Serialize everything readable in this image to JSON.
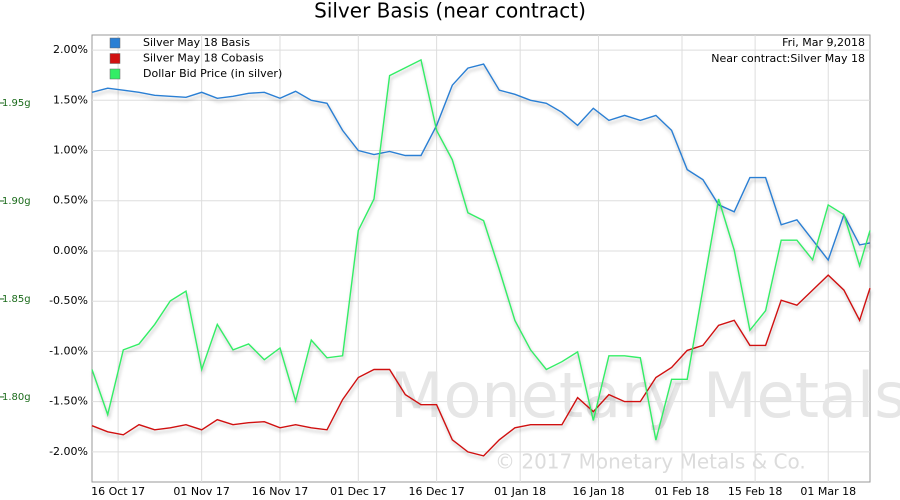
{
  "chart_data": {
    "type": "line",
    "title": "Silver Basis (near contract)",
    "annotations": [
      "Fri, Mar 9,2018",
      "Near contract:Silver May 18"
    ],
    "watermark": [
      "Monetary Metals",
      "© 2017 Monetary Metals & Co."
    ],
    "x": [
      "2017-10-11",
      "2017-10-14",
      "2017-10-17",
      "2017-10-20",
      "2017-10-23",
      "2017-10-26",
      "2017-10-29",
      "2017-11-01",
      "2017-11-04",
      "2017-11-07",
      "2017-11-10",
      "2017-11-13",
      "2017-11-16",
      "2017-11-19",
      "2017-11-22",
      "2017-11-25",
      "2017-11-28",
      "2017-12-01",
      "2017-12-04",
      "2017-12-07",
      "2017-12-10",
      "2017-12-13",
      "2017-12-16",
      "2017-12-19",
      "2017-12-22",
      "2017-12-25",
      "2017-12-28",
      "2017-12-31",
      "2018-01-03",
      "2018-01-06",
      "2018-01-09",
      "2018-01-12",
      "2018-01-15",
      "2018-01-18",
      "2018-01-21",
      "2018-01-24",
      "2018-01-27",
      "2018-01-30",
      "2018-02-02",
      "2018-02-05",
      "2018-02-08",
      "2018-02-11",
      "2018-02-14",
      "2018-02-17",
      "2018-02-20",
      "2018-02-23",
      "2018-02-26",
      "2018-03-01",
      "2018-03-04",
      "2018-03-07",
      "2018-03-09"
    ],
    "series": [
      {
        "name": "Silver May 18 Basis",
        "color": "#2a7fd4",
        "values": [
          1.58,
          1.62,
          1.6,
          1.58,
          1.55,
          1.54,
          1.53,
          1.58,
          1.52,
          1.54,
          1.57,
          1.58,
          1.52,
          1.59,
          1.5,
          1.47,
          1.2,
          1.0,
          0.96,
          0.99,
          0.95,
          0.95,
          1.25,
          1.65,
          1.82,
          1.86,
          1.6,
          1.56,
          1.5,
          1.47,
          1.38,
          1.25,
          1.42,
          1.3,
          1.35,
          1.3,
          1.35,
          1.2,
          0.81,
          0.71,
          0.46,
          0.39,
          0.73,
          0.73,
          0.26,
          0.31,
          0.11,
          -0.09,
          0.36,
          0.06,
          0.08
        ]
      },
      {
        "name": "Silver May 18 Cobasis",
        "color": "#d01010",
        "values": [
          -1.74,
          -1.8,
          -1.83,
          -1.73,
          -1.78,
          -1.76,
          -1.73,
          -1.78,
          -1.68,
          -1.73,
          -1.71,
          -1.7,
          -1.76,
          -1.73,
          -1.76,
          -1.78,
          -1.48,
          -1.26,
          -1.18,
          -1.18,
          -1.43,
          -1.53,
          -1.53,
          -1.88,
          -2.0,
          -2.04,
          -1.88,
          -1.76,
          -1.73,
          -1.73,
          -1.73,
          -1.46,
          -1.6,
          -1.43,
          -1.5,
          -1.5,
          -1.26,
          -1.16,
          -0.99,
          -0.94,
          -0.74,
          -0.69,
          -0.94,
          -0.94,
          -0.49,
          -0.54,
          -0.39,
          -0.24,
          -0.39,
          -0.69,
          -0.37
        ]
      },
      {
        "name": "Dollar Bid Price (in silver)",
        "color": "#33ee66",
        "axis": "y2",
        "values": [
          1.814,
          1.791,
          1.824,
          1.827,
          1.837,
          1.849,
          1.854,
          1.814,
          1.837,
          1.824,
          1.827,
          1.819,
          1.825,
          1.798,
          1.829,
          1.82,
          1.821,
          1.885,
          1.901,
          1.964,
          1.968,
          1.972,
          1.936,
          1.921,
          1.894,
          1.89,
          1.865,
          1.839,
          1.824,
          1.814,
          1.818,
          1.823,
          1.788,
          1.821,
          1.821,
          1.82,
          1.778,
          1.809,
          1.809,
          1.855,
          1.901,
          1.875,
          1.834,
          1.844,
          1.88,
          1.88,
          1.87,
          1.898,
          1.893,
          1.867,
          1.885
        ]
      }
    ],
    "xlim": [
      "2017-10-11",
      "2018-03-09"
    ],
    "xticks": [
      {
        "value": "2017-10-16",
        "label": "16 Oct 17"
      },
      {
        "value": "2017-11-01",
        "label": "01 Nov 17"
      },
      {
        "value": "2017-11-16",
        "label": "16 Nov 17"
      },
      {
        "value": "2017-12-01",
        "label": "01 Dec 17"
      },
      {
        "value": "2017-12-16",
        "label": "16 Dec 17"
      },
      {
        "value": "2018-01-01",
        "label": "01 Jan 18"
      },
      {
        "value": "2018-01-16",
        "label": "16 Jan 18"
      },
      {
        "value": "2018-02-01",
        "label": "01 Feb 18"
      },
      {
        "value": "2018-02-15",
        "label": "15 Feb 18"
      },
      {
        "value": "2018-03-01",
        "label": "01 Mar 18"
      }
    ],
    "ylim": [
      -2.3,
      2.15
    ],
    "yticks": [
      {
        "value": -2,
        "label": "-2.00%"
      },
      {
        "value": -1.5,
        "label": "-1.50%"
      },
      {
        "value": -1,
        "label": "-1.00%"
      },
      {
        "value": -0.5,
        "label": "-0.50%"
      },
      {
        "value": 0,
        "label": "0.00%"
      },
      {
        "value": 0.5,
        "label": "0.50%"
      },
      {
        "value": 1,
        "label": "1.00%"
      },
      {
        "value": 1.5,
        "label": "1.50%"
      },
      {
        "value": 2,
        "label": "2.00%"
      }
    ],
    "y2lim": [
      1.7566,
      1.9847
    ],
    "y2ticks": [
      {
        "value": 1.8,
        "label": "1.80g"
      },
      {
        "value": 1.85,
        "label": "1.85g"
      },
      {
        "value": 1.9,
        "label": "1.90g"
      },
      {
        "value": 1.95,
        "label": "1.95g"
      }
    ],
    "grid": true,
    "legend": "upper left"
  }
}
